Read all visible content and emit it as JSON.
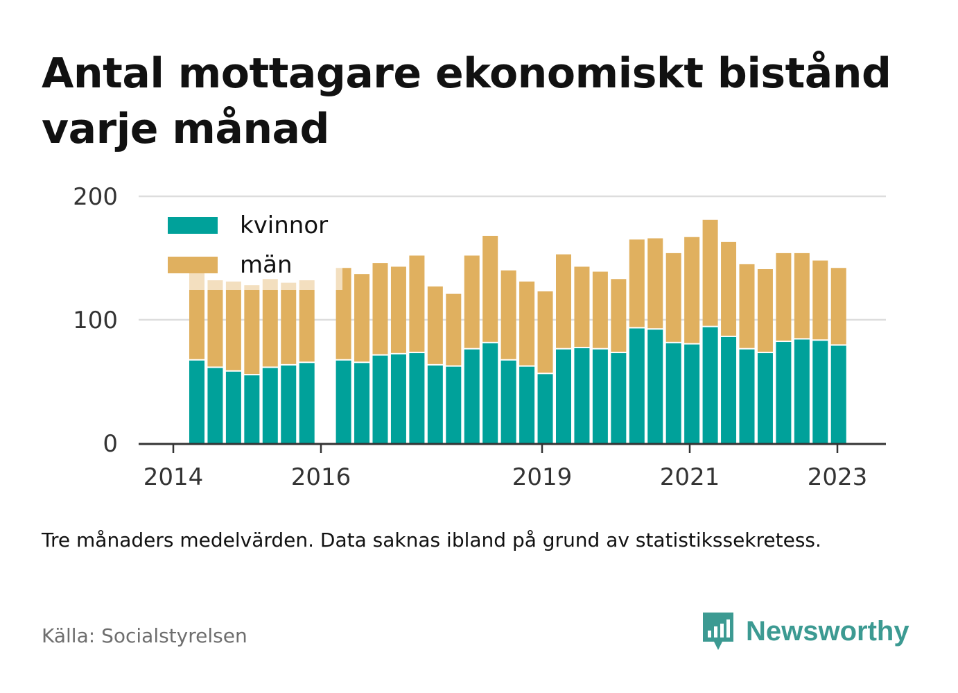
{
  "title": "Antal mottagare ekonomiskt bistånd varje månad",
  "note": "Tre månaders medelvärden. Data saknas ibland på grund av statistikssekretess.",
  "source": "Källa: Socialstyrelsen",
  "brand": {
    "name": "Newsworthy",
    "icon": "bar-chart-speech-bubble-icon",
    "color": "#3c9a92"
  },
  "chart_data": {
    "type": "bar",
    "stacked": true,
    "ylim": [
      0,
      200
    ],
    "yticks": [
      0,
      100,
      200
    ],
    "xtick_labels": [
      "2014",
      "2016",
      "2019",
      "2021",
      "2023"
    ],
    "grid": true,
    "legend_position": "top-left",
    "series": [
      {
        "name": "kvinnor",
        "color": "#00a19a",
        "values": [
          67,
          61,
          58,
          55,
          61,
          63,
          65,
          null,
          67,
          65,
          71,
          72,
          73,
          63,
          62,
          76,
          81,
          67,
          62,
          56,
          76,
          77,
          76,
          73,
          93,
          92,
          81,
          80,
          94,
          86,
          76,
          73,
          82,
          84,
          83,
          79
        ]
      },
      {
        "name": "män",
        "color": "#e0b05f",
        "values": [
          71,
          71,
          73,
          73,
          72,
          67,
          67,
          null,
          75,
          72,
          75,
          71,
          79,
          64,
          59,
          76,
          87,
          73,
          69,
          67,
          77,
          66,
          63,
          60,
          72,
          74,
          73,
          87,
          87,
          77,
          69,
          68,
          72,
          70,
          65,
          63
        ]
      }
    ]
  }
}
